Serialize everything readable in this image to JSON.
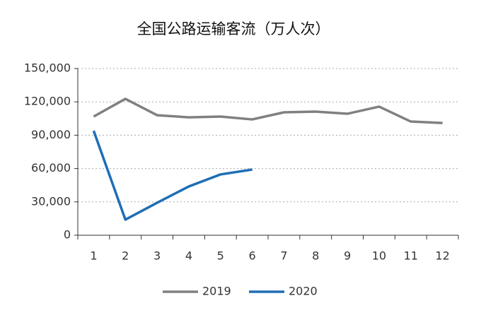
{
  "chart_data": {
    "type": "line",
    "title": "全国公路运输客流（万人次）",
    "categories": [
      "1",
      "2",
      "3",
      "4",
      "5",
      "6",
      "7",
      "8",
      "9",
      "10",
      "11",
      "12"
    ],
    "series": [
      {
        "name": "2019",
        "color": "#808080",
        "values": [
          106800,
          122700,
          108000,
          106100,
          106800,
          104200,
          110600,
          111200,
          109300,
          115700,
          102300,
          101000
        ]
      },
      {
        "name": "2020",
        "color": "#1f6eb5",
        "values": [
          94000,
          14000,
          29200,
          43900,
          54700,
          59100,
          null,
          null,
          null,
          null,
          null,
          null
        ]
      }
    ],
    "ylim": [
      0,
      150000
    ],
    "yticks": [
      0,
      {
        "value": 30000,
        "label": "30,000"
      },
      {
        "value": 60000,
        "label": "60,000"
      },
      {
        "value": 90000,
        "label": "90,000"
      },
      {
        "value": 120000,
        "label": "120,000"
      },
      {
        "value": 150000,
        "label": "150,000"
      }
    ],
    "grid": true,
    "legend": "bottom"
  }
}
